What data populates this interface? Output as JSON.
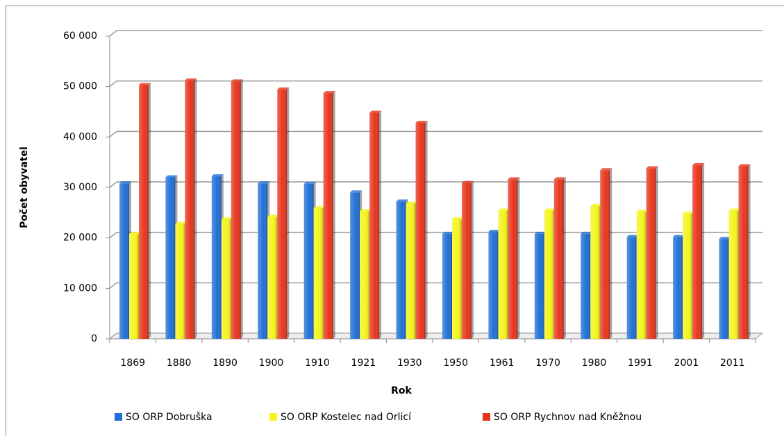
{
  "chart_data": {
    "type": "bar",
    "x_label": "Rok",
    "y_label": "Počet obyvatel",
    "categories": [
      "1869",
      "1880",
      "1890",
      "1900",
      "1910",
      "1921",
      "1930",
      "1950",
      "1961",
      "1970",
      "1980",
      "1991",
      "2001",
      "2011"
    ],
    "series": [
      {
        "name": "SO ORP Dobruška",
        "color": "#1f6fd6",
        "values": [
          30800,
          32000,
          32200,
          30800,
          30700,
          29000,
          27200,
          20800,
          21200,
          20800,
          20800,
          20200,
          20200,
          19800
        ]
      },
      {
        "name": "SO ORP Kostelec nad Orlicí",
        "color": "#f4f41a",
        "values": [
          20800,
          22800,
          23700,
          24200,
          25900,
          25300,
          26800,
          23700,
          25400,
          25400,
          26300,
          25200,
          24800,
          25400
        ]
      },
      {
        "name": "SO ORP Rychnov nad Kněžnou",
        "color": "#e8341c",
        "values": [
          50300,
          51200,
          51000,
          49400,
          48700,
          44800,
          42800,
          30900,
          31600,
          31600,
          33400,
          33800,
          34400,
          34200
        ]
      }
    ],
    "ylim": [
      0,
      60000
    ],
    "yticks": [
      {
        "value": 0,
        "label": "0"
      },
      {
        "value": 10000,
        "label": "10 000"
      },
      {
        "value": 20000,
        "label": "20 000"
      },
      {
        "value": 30000,
        "label": "30 000"
      },
      {
        "value": 40000,
        "label": "40 000"
      },
      {
        "value": 50000,
        "label": "50 000"
      },
      {
        "value": 60000,
        "label": "60 000"
      }
    ],
    "grid": true,
    "legend": "bottom"
  }
}
